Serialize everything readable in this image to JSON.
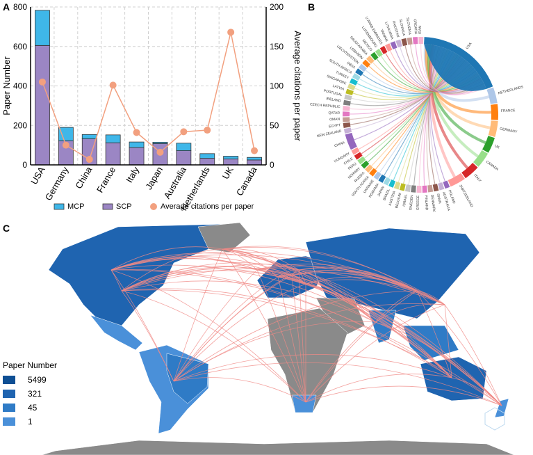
{
  "panels": {
    "a": "A",
    "b": "B",
    "c": "C"
  },
  "chart_data": [
    {
      "type": "bar",
      "panel": "A",
      "categories": [
        "USA",
        "Germany",
        "China",
        "France",
        "Italy",
        "Japan",
        "Australia",
        "Netherlands",
        "UK",
        "Canada"
      ],
      "series": [
        {
          "name": "SCP",
          "values": [
            605,
            122,
            132,
            112,
            88,
            108,
            72,
            33,
            30,
            25
          ],
          "color": "#9b86c4"
        },
        {
          "name": "MCP",
          "values": [
            178,
            68,
            22,
            40,
            28,
            7,
            38,
            24,
            14,
            13
          ],
          "color": "#3fb7e9"
        }
      ],
      "line_series": {
        "name": "Average citations per paper",
        "values": [
          105,
          25,
          7,
          101,
          41,
          16,
          42,
          44,
          168,
          18
        ],
        "color": "#f2a07f"
      },
      "ylabel": "Paper Number",
      "y2label": "Average citations per paper",
      "ylim": [
        0,
        800
      ],
      "y2lim": [
        0,
        200
      ],
      "yticks": [
        0,
        200,
        400,
        600,
        800
      ],
      "y2ticks": [
        0,
        50,
        100,
        150,
        200
      ],
      "legend": [
        "MCP",
        "SCP",
        "Average citations per paper"
      ],
      "grid": true
    },
    {
      "type": "chord",
      "panel": "B",
      "labels": [
        "USA",
        "NETHERLANDS",
        "FRANCE",
        "GERMANY",
        "UK",
        "CANADA",
        "ITALY",
        "SWITZERLAND",
        "POLAND",
        "AUSTRALIA",
        "SPAIN",
        "DENMARK",
        "FINLAND",
        "GREECE",
        "SWEDEN",
        "ISRAEL",
        "BELGIUM",
        "AUSTRIA",
        "BRAZIL",
        "JAPAN",
        "ROMANIA",
        "UKRAINE",
        "SOUTH KOREA",
        "RUSSIA",
        "NORWAY",
        "PERU",
        "CHILE",
        "HUNGARY",
        "CHINA",
        "NEW ZEALAND",
        "EGYPT",
        "OMAN",
        "QATAR",
        "CZECH REPUBLIC",
        "IRELAND",
        "PORTUGAL",
        "LATVIA",
        "SINGAPORE",
        "TURKEY",
        "SOUTH AFRICA",
        "INDIA",
        "LIECHTENSTEIN",
        "LEBANON",
        "SAUDI ARABIA",
        "MEXICO",
        "LUXEMBOURG",
        "U ARAB EMIRATES",
        "TAIWAN",
        "LITHUANIA",
        "PAKISTAN",
        "SLOVAKIA",
        "SLOVENIA",
        "CROATIA",
        "IRAN"
      ]
    },
    {
      "type": "map",
      "panel": "C",
      "legend_title": "Paper Number",
      "legend": [
        {
          "label": "5499",
          "color": "#0e4f94"
        },
        {
          "label": "321",
          "color": "#1f64b0"
        },
        {
          "label": "45",
          "color": "#2f7bc6"
        },
        {
          "label": "1",
          "color": "#4a90d9"
        }
      ],
      "link_color": "#f08a86",
      "no_data_color": "#8a8a8a"
    }
  ]
}
